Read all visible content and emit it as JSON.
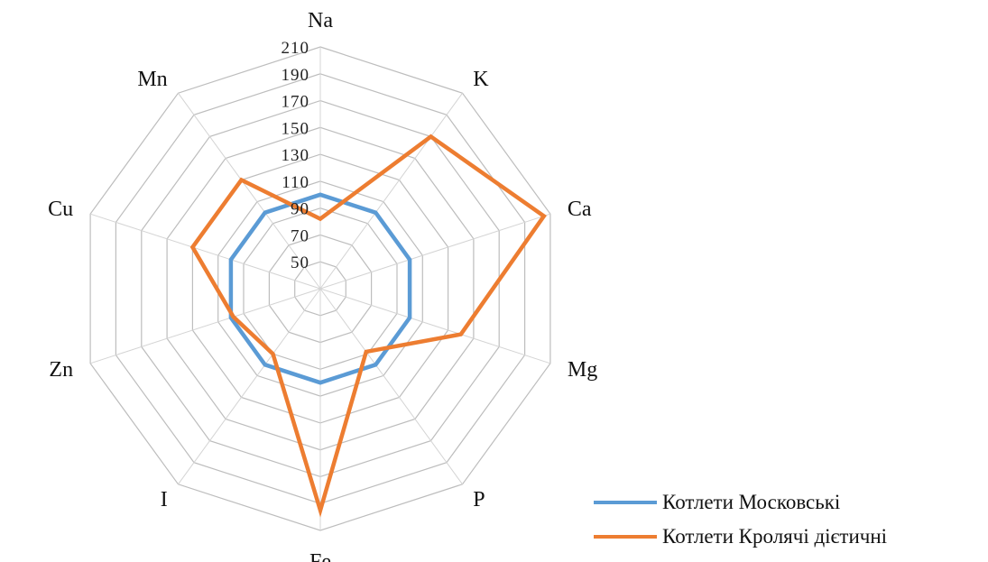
{
  "chart_data": {
    "type": "radar",
    "title": "",
    "categories": [
      "Na",
      "K",
      "Ca",
      "Mg",
      "P",
      "Fe",
      "I",
      "Zn",
      "Cu",
      "Mn"
    ],
    "rmin": 30,
    "rmax": 210,
    "ticks": [
      50,
      70,
      90,
      110,
      130,
      150,
      170,
      190,
      210
    ],
    "rings": [
      30,
      50,
      70,
      90,
      110,
      130,
      150,
      170,
      190,
      210
    ],
    "grid": true,
    "legend_position": "bottom-right",
    "series": [
      {
        "name": "Котлети Московські",
        "color": "#5b9bd5",
        "values": [
          100,
          100,
          100,
          100,
          100,
          100,
          100,
          100,
          100,
          100
        ]
      },
      {
        "name": "Котлети Кролячі дієтичні",
        "color": "#ed7d31",
        "values": [
          82,
          170,
          205,
          140,
          88,
          195,
          90,
          98,
          130,
          130
        ]
      }
    ]
  }
}
